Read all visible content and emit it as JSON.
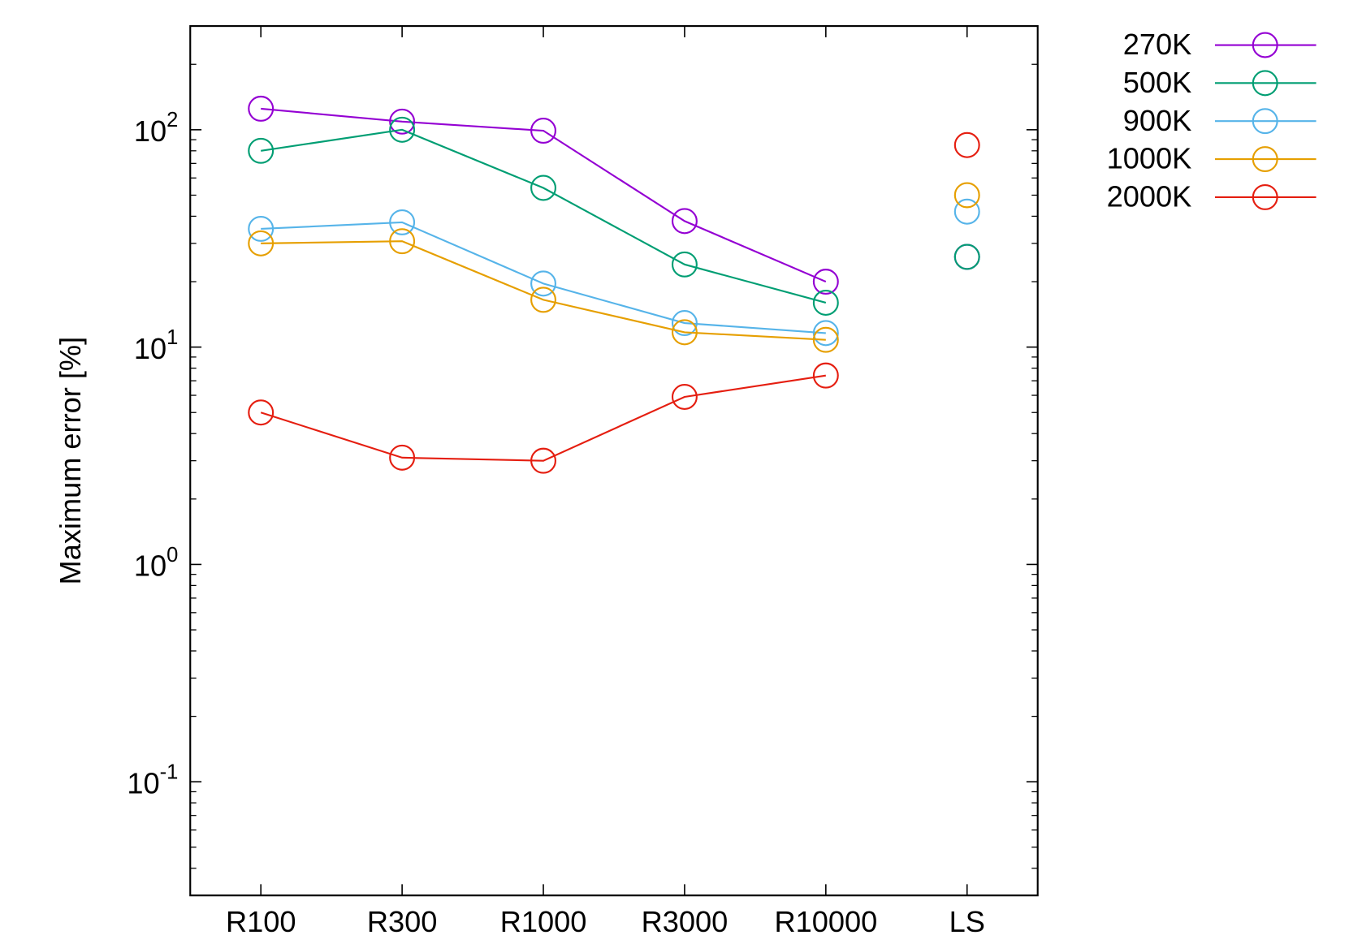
{
  "chart_data": {
    "type": "line",
    "y_label": "Maximum error [%]",
    "categories": [
      "R100",
      "R300",
      "R1000",
      "R3000",
      "R10000",
      "LS"
    ],
    "line_breaks_before": [
      "LS"
    ],
    "series": [
      {
        "name": "270K",
        "color": "#9400d3",
        "values": [
          125,
          109,
          99,
          38,
          20,
          26
        ]
      },
      {
        "name": "500K",
        "color": "#009e73",
        "values": [
          80,
          100,
          54,
          24,
          16,
          26
        ]
      },
      {
        "name": "900K",
        "color": "#56b4e9",
        "values": [
          35,
          37.5,
          19.6,
          12.9,
          11.6,
          42
        ]
      },
      {
        "name": "1000K",
        "color": "#e69f00",
        "values": [
          30,
          30.7,
          16.5,
          11.7,
          10.8,
          50
        ]
      },
      {
        "name": "2000K",
        "color": "#e51e10",
        "values": [
          5.0,
          3.1,
          3.0,
          5.9,
          7.4,
          85
        ]
      }
    ],
    "log_y": true,
    "ylim": [
      0.03,
      300
    ],
    "yticks": [
      {
        "value": 0.1,
        "label": "10^-1"
      },
      {
        "value": 1,
        "label": "10^0"
      },
      {
        "value": 10,
        "label": "10^1"
      },
      {
        "value": 100,
        "label": "10^2"
      }
    ],
    "minor_yticks": [
      0.04,
      0.05,
      0.06,
      0.07,
      0.08,
      0.09,
      0.2,
      0.3,
      0.4,
      0.5,
      0.6,
      0.7,
      0.8,
      0.9,
      2,
      3,
      4,
      5,
      6,
      7,
      8,
      9,
      20,
      30,
      40,
      50,
      60,
      70,
      80,
      90,
      200,
      300
    ],
    "legend": "outside-top-right"
  }
}
